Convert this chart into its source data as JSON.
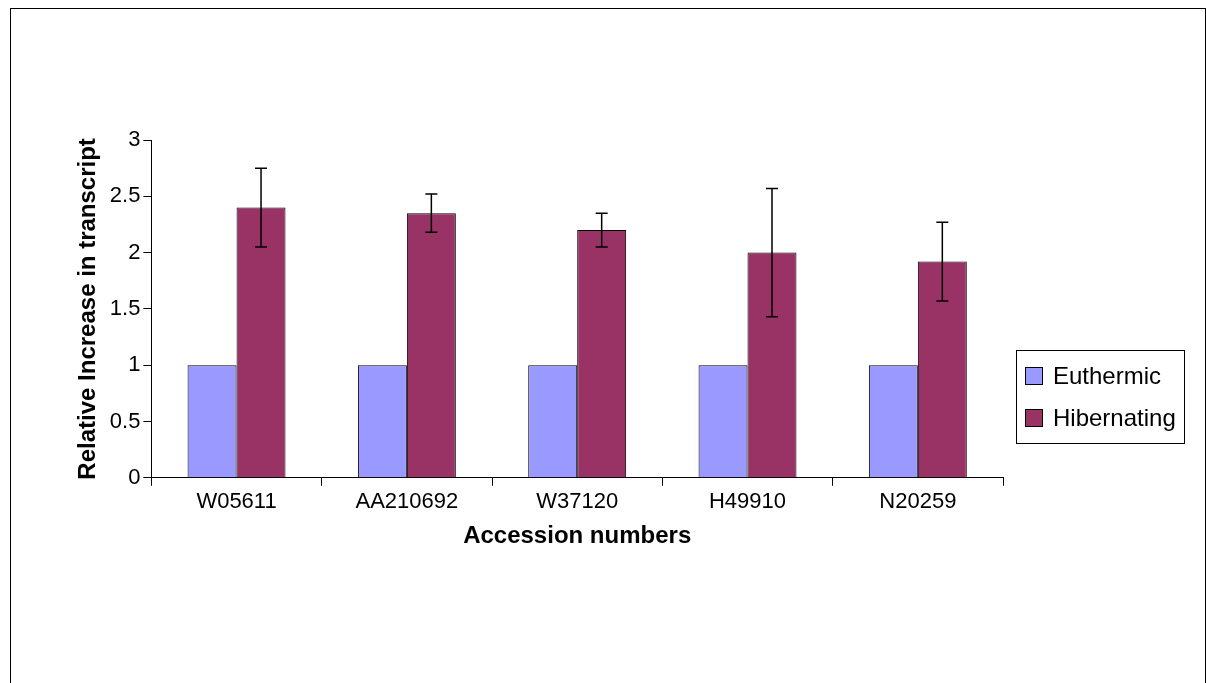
{
  "chart_data": {
    "type": "bar",
    "xlabel": "Accession numbers",
    "ylabel": "Relative Increase in transcript",
    "categories": [
      "W05611",
      "AA210692",
      "W37120",
      "H49910",
      "N20259"
    ],
    "series": [
      {
        "name": "Euthermic",
        "color": "#9999ff",
        "values": [
          1,
          1,
          1,
          1,
          1
        ]
      },
      {
        "name": "Hibernating",
        "color": "#993366",
        "values": [
          2.4,
          2.35,
          2.2,
          2.0,
          1.92
        ],
        "errors": [
          0.35,
          0.17,
          0.15,
          0.57,
          0.35
        ]
      }
    ],
    "ylim": [
      0,
      3
    ],
    "yticks": [
      0,
      0.5,
      1,
      1.5,
      2,
      2.5,
      3
    ],
    "grid": false,
    "legend": "right"
  }
}
